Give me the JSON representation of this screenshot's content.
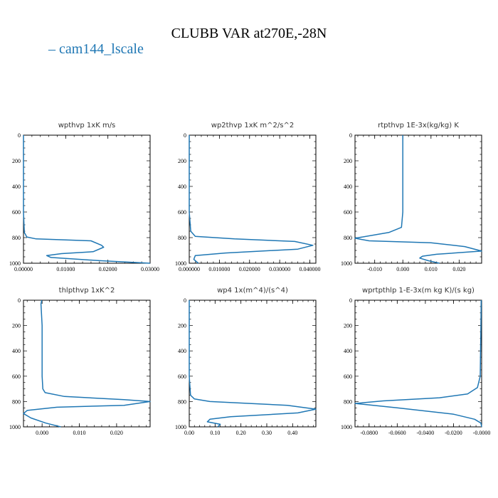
{
  "title": "CLUBB VAR at270E,-28N",
  "legend": {
    "label": "cam144_lscale",
    "marker": "–",
    "color": "#1f77b4"
  },
  "chart_data": [
    {
      "type": "line",
      "title": "wpthvp   1xK m/s",
      "xlim": [
        0,
        0.03
      ],
      "ylim": [
        1000,
        0
      ],
      "xticks": [
        0,
        0.01,
        0.02,
        0.03
      ],
      "xtick_labels": [
        "0.00000",
        "0.01000",
        "0.02000",
        "0.03000"
      ],
      "yticks": [
        0,
        200,
        400,
        600,
        800,
        1000
      ],
      "ytick_labels": [
        "0",
        "200",
        "400",
        "600",
        "800",
        "1000"
      ],
      "series": [
        {
          "color": "#1f77b4",
          "x": [
            0,
            0,
            0,
            0.0002,
            0.0008,
            0.003,
            0.016,
            0.0185,
            0.019,
            0.0165,
            0.009,
            0.0055,
            0.0065,
            0.018,
            0.03
          ],
          "y": [
            0,
            300,
            600,
            760,
            795,
            810,
            825,
            860,
            875,
            910,
            925,
            940,
            955,
            980,
            1000
          ]
        }
      ]
    },
    {
      "type": "line",
      "title": "wp2thvp   1xK m^2/s^2",
      "xlim": [
        0,
        0.042
      ],
      "ylim": [
        1000,
        0
      ],
      "xticks": [
        0,
        0.01,
        0.02,
        0.03,
        0.04
      ],
      "xtick_labels": [
        "0.000000",
        "0.010000",
        "0.020000",
        "0.030000",
        "0.040000"
      ],
      "yticks": [
        0,
        200,
        400,
        600,
        800,
        1000
      ],
      "ytick_labels": [
        "0",
        "200",
        "400",
        "600",
        "800",
        "1000"
      ],
      "series": [
        {
          "color": "#1f77b4",
          "x": [
            0,
            0,
            0,
            0.0005,
            0.002,
            0.015,
            0.035,
            0.041,
            0.036,
            0.012,
            0.002,
            0.0015,
            0.003
          ],
          "y": [
            0,
            300,
            600,
            750,
            790,
            810,
            830,
            860,
            890,
            920,
            940,
            970,
            1000
          ]
        }
      ]
    },
    {
      "type": "line",
      "title": "rtpthvp   1E-3x(kg/kg) K",
      "xlim": [
        -0.017,
        0.028
      ],
      "ylim": [
        1000,
        0
      ],
      "xticks": [
        -0.01,
        0,
        0.01,
        0.02
      ],
      "xtick_labels": [
        "-0.010",
        "0.000",
        "0.010",
        "0.020"
      ],
      "yticks": [
        0,
        200,
        400,
        600,
        800,
        1000
      ],
      "ytick_labels": [
        "0",
        "200",
        "400",
        "600",
        "800",
        "1000"
      ],
      "series": [
        {
          "color": "#1f77b4",
          "x": [
            0,
            0,
            0,
            -0.0005,
            -0.005,
            -0.017,
            -0.012,
            0.01,
            0.022,
            0.028,
            0.012,
            0.007,
            0.006,
            0.009,
            0.013
          ],
          "y": [
            0,
            300,
            600,
            720,
            760,
            805,
            825,
            840,
            870,
            905,
            930,
            945,
            960,
            980,
            1000
          ]
        }
      ]
    },
    {
      "type": "line",
      "title": "thlpthvp   1xK^2",
      "xlim": [
        -0.005,
        0.029
      ],
      "ylim": [
        1000,
        0
      ],
      "xticks": [
        0,
        0.01,
        0.02
      ],
      "xtick_labels": [
        "0.000",
        "0.010",
        "0.020"
      ],
      "yticks": [
        0,
        200,
        400,
        600,
        800,
        1000
      ],
      "ytick_labels": [
        "0",
        "200",
        "400",
        "600",
        "800",
        "1000"
      ],
      "series": [
        {
          "color": "#1f77b4",
          "x": [
            -0.0001,
            -0.0003,
            0,
            0,
            0.0002,
            0.0008,
            0.006,
            0.022,
            0.029,
            0.022,
            0.004,
            -0.004,
            -0.005,
            -0.003,
            0.001,
            0.005
          ],
          "y": [
            0,
            30,
            200,
            600,
            700,
            730,
            760,
            785,
            800,
            830,
            845,
            870,
            895,
            930,
            970,
            1000
          ]
        }
      ]
    },
    {
      "type": "line",
      "title": "wp4   1x(m^4)/(s^4)",
      "xlim": [
        0,
        0.49
      ],
      "ylim": [
        1000,
        0
      ],
      "xticks": [
        0,
        0.1,
        0.2,
        0.3,
        0.4
      ],
      "xtick_labels": [
        "0.00",
        "0.10",
        "0.20",
        "0.30",
        "0.40"
      ],
      "yticks": [
        0,
        200,
        400,
        600,
        800,
        1000
      ],
      "ytick_labels": [
        "0",
        "200",
        "400",
        "600",
        "800",
        "1000"
      ],
      "series": [
        {
          "color": "#1f77b4",
          "x": [
            0,
            0,
            0,
            0.005,
            0.02,
            0.08,
            0.38,
            0.49,
            0.42,
            0.16,
            0.08,
            0.07,
            0.12,
            0.11
          ],
          "y": [
            0,
            300,
            600,
            750,
            780,
            800,
            830,
            860,
            890,
            920,
            940,
            960,
            980,
            1000
          ]
        }
      ]
    },
    {
      "type": "line",
      "title": "wprtpthlp   1-E-3x(m kg K)/(s kg)",
      "xlim": [
        -0.09,
        0
      ],
      "ylim": [
        1000,
        0
      ],
      "xticks": [
        -0.08,
        -0.06,
        -0.04,
        -0.02,
        0
      ],
      "xtick_labels": [
        "-0.0800",
        "-0.0600",
        "-0.0400",
        "-0.0200",
        "-0.0000"
      ],
      "yticks": [
        0,
        200,
        400,
        600,
        800,
        1000
      ],
      "ytick_labels": [
        "0",
        "200",
        "400",
        "600",
        "800",
        "1000"
      ],
      "series": [
        {
          "color": "#1f77b4",
          "x": [
            -0.0003,
            -0.0005,
            -0.001,
            -0.003,
            -0.01,
            -0.03,
            -0.07,
            -0.09,
            -0.06,
            -0.02,
            -0.005,
            -0.0005,
            0
          ],
          "y": [
            0,
            200,
            600,
            690,
            740,
            770,
            795,
            815,
            850,
            900,
            940,
            970,
            1000
          ]
        }
      ]
    }
  ]
}
